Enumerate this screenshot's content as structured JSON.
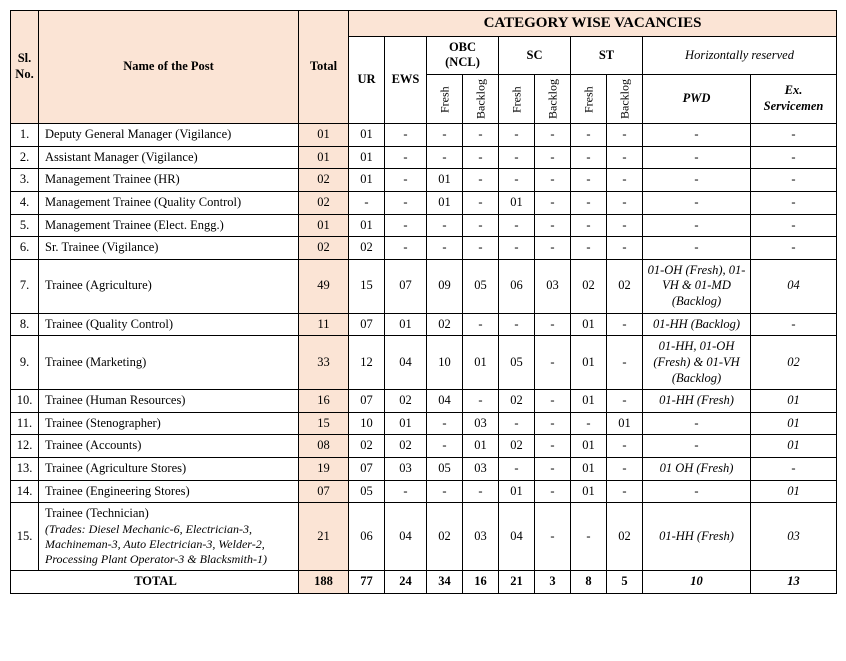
{
  "colors": {
    "header_bg": "#fbe4d5",
    "border": "#000000",
    "bg": "#ffffff",
    "text": "#000000"
  },
  "fonts": {
    "family": "Times New Roman",
    "header_title_size_pt": 15,
    "cell_size_pt": 12.5
  },
  "headers": {
    "sl": "Sl. No.",
    "name": "Name of the Post",
    "total": "Total",
    "cat_wise": "CATEGORY WISE VACANCIES",
    "ur": "UR",
    "ews": "EWS",
    "obc": "OBC (NCL)",
    "sc": "SC",
    "st": "ST",
    "horiz": "Horizontally reserved",
    "fresh": "Fresh",
    "backlog": "Backlog",
    "pwd": "PWD",
    "ex": "Ex. Servicemen"
  },
  "rows": [
    {
      "sl": "1.",
      "name": "Deputy General Manager (Vigilance)",
      "total": "01",
      "ur": "01",
      "ews": "-",
      "obc_f": "-",
      "obc_b": "-",
      "sc_f": "-",
      "sc_b": "-",
      "st_f": "-",
      "st_b": "-",
      "pwd": "-",
      "ex": "-"
    },
    {
      "sl": "2.",
      "name": "Assistant Manager (Vigilance)",
      "total": "01",
      "ur": "01",
      "ews": "-",
      "obc_f": "-",
      "obc_b": "-",
      "sc_f": "-",
      "sc_b": "-",
      "st_f": "-",
      "st_b": "-",
      "pwd": "-",
      "ex": "-"
    },
    {
      "sl": "3.",
      "name": "Management Trainee (HR)",
      "total": "02",
      "ur": "01",
      "ews": "-",
      "obc_f": "01",
      "obc_b": "-",
      "sc_f": "-",
      "sc_b": "-",
      "st_f": "-",
      "st_b": "-",
      "pwd": "-",
      "ex": "-"
    },
    {
      "sl": "4.",
      "name": "Management Trainee (Quality Control)",
      "total": "02",
      "ur": "-",
      "ews": "-",
      "obc_f": "01",
      "obc_b": "-",
      "sc_f": "01",
      "sc_b": "-",
      "st_f": "-",
      "st_b": "-",
      "pwd": "-",
      "ex": "-"
    },
    {
      "sl": "5.",
      "name": "Management Trainee (Elect. Engg.)",
      "total": "01",
      "ur": "01",
      "ews": "-",
      "obc_f": "-",
      "obc_b": "-",
      "sc_f": "-",
      "sc_b": "-",
      "st_f": "-",
      "st_b": "-",
      "pwd": "-",
      "ex": "-"
    },
    {
      "sl": "6.",
      "name": "Sr. Trainee (Vigilance)",
      "total": "02",
      "ur": "02",
      "ews": "-",
      "obc_f": "-",
      "obc_b": "-",
      "sc_f": "-",
      "sc_b": "-",
      "st_f": "-",
      "st_b": "-",
      "pwd": "-",
      "ex": "-"
    },
    {
      "sl": "7.",
      "name": "Trainee (Agriculture)",
      "total": "49",
      "ur": "15",
      "ews": "07",
      "obc_f": "09",
      "obc_b": "05",
      "sc_f": "06",
      "sc_b": "03",
      "st_f": "02",
      "st_b": "02",
      "pwd": "01-OH (Fresh), 01-VH & 01-MD (Backlog)",
      "pwd_italic": true,
      "ex": "04",
      "ex_italic": true
    },
    {
      "sl": "8.",
      "name": "Trainee (Quality Control)",
      "total": "11",
      "ur": "07",
      "ews": "01",
      "obc_f": "02",
      "obc_b": "-",
      "sc_f": "-",
      "sc_b": "-",
      "st_f": "01",
      "st_b": "-",
      "pwd": "01-HH (Backlog)",
      "pwd_italic": true,
      "ex": "-"
    },
    {
      "sl": "9.",
      "name": "Trainee (Marketing)",
      "total": "33",
      "ur": "12",
      "ews": "04",
      "obc_f": "10",
      "obc_b": "01",
      "sc_f": "05",
      "sc_b": "-",
      "st_f": "01",
      "st_b": "-",
      "pwd": "01-HH, 01-OH (Fresh) & 01-VH (Backlog)",
      "pwd_italic": true,
      "ex": "02",
      "ex_italic": true
    },
    {
      "sl": "10.",
      "name": "Trainee (Human Resources)",
      "total": "16",
      "ur": "07",
      "ews": "02",
      "obc_f": "04",
      "obc_b": "-",
      "sc_f": "02",
      "sc_b": "-",
      "st_f": "01",
      "st_b": "-",
      "pwd": "01-HH (Fresh)",
      "pwd_italic": true,
      "ex": "01",
      "ex_italic": true
    },
    {
      "sl": "11.",
      "name": "Trainee (Stenographer)",
      "total": "15",
      "ur": "10",
      "ews": "01",
      "obc_f": "-",
      "obc_b": "03",
      "sc_f": "-",
      "sc_b": "-",
      "st_f": "-",
      "st_b": "01",
      "pwd": "-",
      "ex": "01",
      "ex_italic": true
    },
    {
      "sl": "12.",
      "name": "Trainee (Accounts)",
      "total": "08",
      "ur": "02",
      "ews": "02",
      "obc_f": "-",
      "obc_b": "01",
      "sc_f": "02",
      "sc_b": "-",
      "st_f": "01",
      "st_b": "-",
      "pwd": "-",
      "ex": "01",
      "ex_italic": true
    },
    {
      "sl": "13.",
      "name": "Trainee (Agriculture Stores)",
      "total": "19",
      "ur": "07",
      "ews": "03",
      "obc_f": "05",
      "obc_b": "03",
      "sc_f": "-",
      "sc_b": "-",
      "st_f": "01",
      "st_b": "-",
      "pwd": "01 OH (Fresh)",
      "pwd_italic": true,
      "ex": "-"
    },
    {
      "sl": "14.",
      "name": "Trainee (Engineering Stores)",
      "total": "07",
      "ur": "05",
      "ews": "-",
      "obc_f": "-",
      "obc_b": "-",
      "sc_f": "01",
      "sc_b": "-",
      "st_f": "01",
      "st_b": "-",
      "pwd": "-",
      "ex": "01",
      "ex_italic": true
    },
    {
      "sl": "15.",
      "name": "Trainee (Technician)",
      "trades": "(Trades: Diesel Mechanic-6, Electrician-3, Machineman-3, Auto Electrician-3, Welder-2, Processing Plant Operator-3 & Blacksmith-1)",
      "total": "21",
      "ur": "06",
      "ews": "04",
      "obc_f": "02",
      "obc_b": "03",
      "sc_f": "04",
      "sc_b": "-",
      "st_f": "-",
      "st_b": "02",
      "pwd": "01-HH (Fresh)",
      "pwd_italic": true,
      "ex": "03",
      "ex_italic": true
    }
  ],
  "totals": {
    "label": "TOTAL",
    "total": "188",
    "ur": "77",
    "ews": "24",
    "obc_f": "34",
    "obc_b": "16",
    "sc_f": "21",
    "sc_b": "3",
    "st_f": "8",
    "st_b": "5",
    "pwd": "10",
    "ex": "13"
  }
}
